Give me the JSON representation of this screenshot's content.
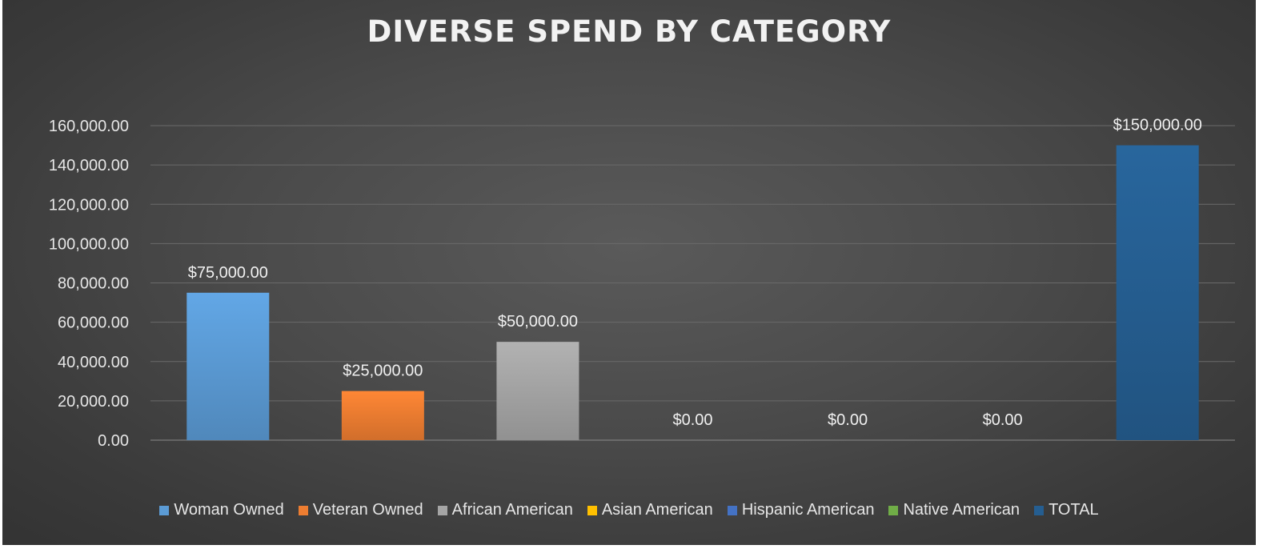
{
  "chart_data": {
    "type": "bar",
    "title": "DIVERSE SPEND BY CATEGORY",
    "categories": [
      "Woman Owned",
      "Veteran Owned",
      "African American",
      "Asian American",
      "Hispanic American",
      "Native American",
      "TOTAL"
    ],
    "values": [
      75000,
      25000,
      50000,
      0,
      0,
      0,
      150000
    ],
    "data_labels": [
      "$75,000.00",
      "$25,000.00",
      "$50,000.00",
      "$0.00",
      "$0.00",
      "$0.00",
      "$150,000.00"
    ],
    "colors": [
      "#5b9bd5",
      "#ed7d31",
      "#a5a5a5",
      "#ffc000",
      "#4472c4",
      "#70ad47",
      "#255e91"
    ],
    "y_ticks": [
      "0.00",
      "20,000.00",
      "40,000.00",
      "60,000.00",
      "80,000.00",
      "100,000.00",
      "120,000.00",
      "140,000.00",
      "160,000.00"
    ],
    "ylim": [
      0,
      160000
    ],
    "grid": true,
    "legend_position": "bottom",
    "xlabel": "",
    "ylabel": ""
  }
}
